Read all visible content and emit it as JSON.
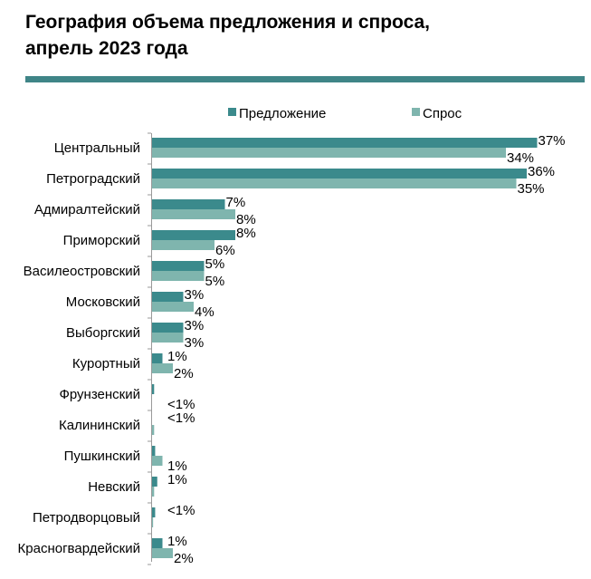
{
  "title_line1": "География объема предложения и спроса,",
  "title_line2": "апрель 2023 года",
  "colors": {
    "supply": "#3b8a8c",
    "demand": "#7fb5ae",
    "rule": "#3f8587"
  },
  "chart_data": {
    "type": "bar",
    "orientation": "horizontal",
    "legend_position": "top",
    "grid": false,
    "xlim": [
      0,
      42
    ],
    "categories": [
      "Центральный",
      "Петроградский",
      "Адмиралтейский",
      "Приморский",
      "Василеостровский",
      "Московский",
      "Выборгский",
      "Курортный",
      "Фрунзенский",
      "Калининский",
      "Пушкинский",
      "Невский",
      "Петродворцовый",
      "Красногвардейский"
    ],
    "series": [
      {
        "name": "Предложение",
        "values": [
          37,
          36,
          7,
          8,
          5,
          3,
          3,
          1,
          0.2,
          0,
          0.3,
          0.5,
          0.3,
          1
        ],
        "labels": [
          "37%",
          "36%",
          "7%",
          "8%",
          "5%",
          "3%",
          "3%",
          "1%",
          "",
          "<1%",
          "",
          "1%",
          "<1%",
          "1%"
        ]
      },
      {
        "name": "Спрос",
        "values": [
          34,
          35,
          8,
          6,
          5,
          4,
          3,
          2,
          0,
          0.2,
          1,
          0.2,
          0.1,
          2
        ],
        "labels": [
          "34%",
          "35%",
          "8%",
          "6%",
          "5%",
          "4%",
          "3%",
          "2%",
          "<1%",
          "",
          "1%",
          "",
          "",
          "2%"
        ]
      }
    ]
  }
}
